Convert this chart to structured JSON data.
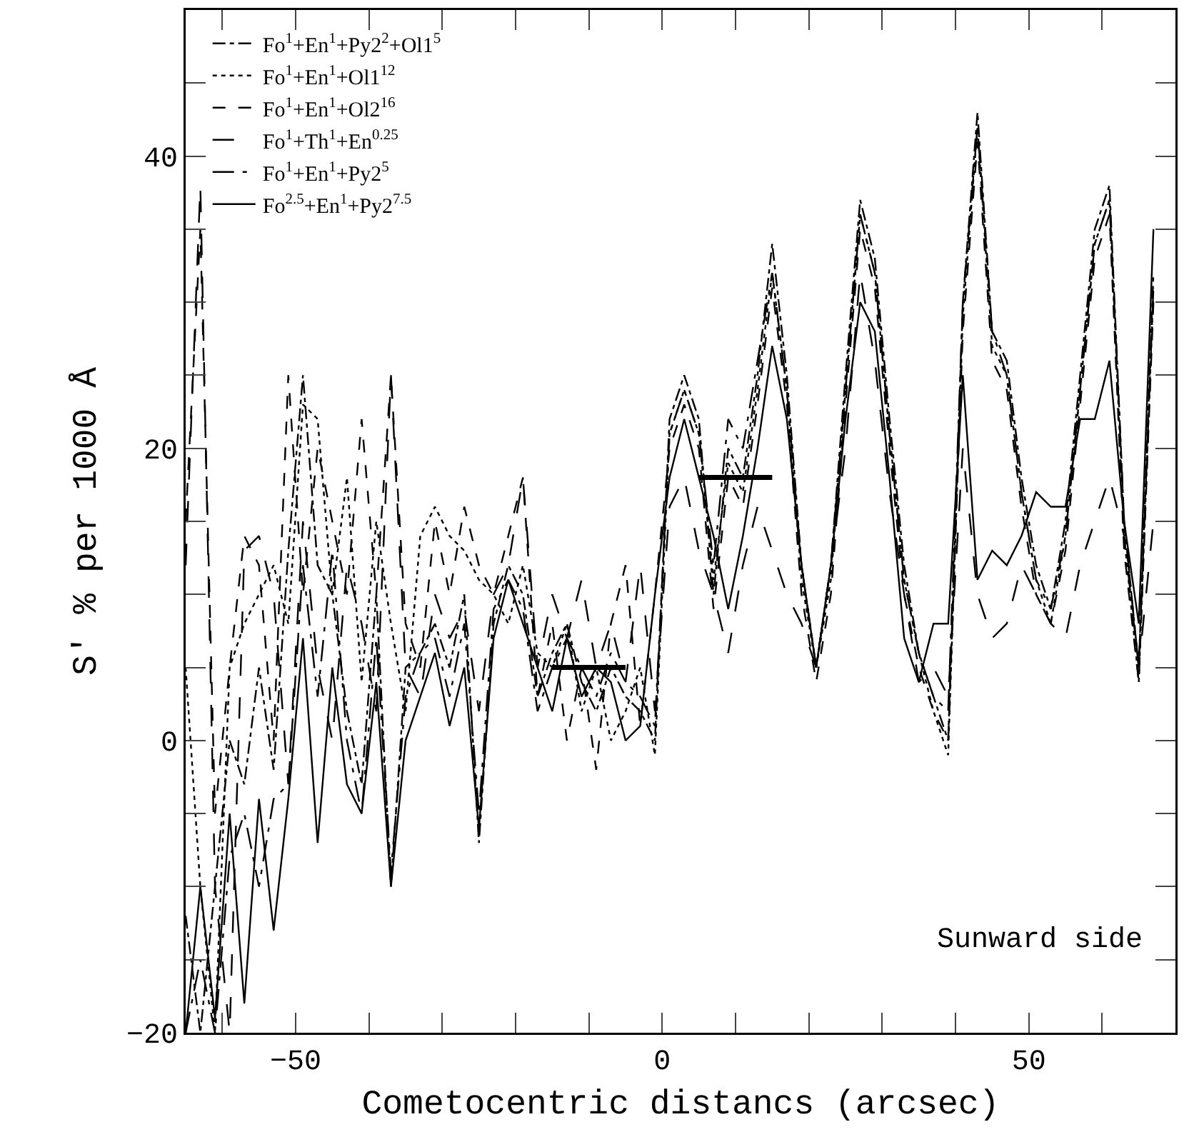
{
  "chart_data": {
    "type": "line",
    "xlabel": "Cometocentric distancs (arcsec)",
    "ylabel": "S' % per 1000 Å",
    "annotations": [
      "Sunward side"
    ],
    "x": [
      -65,
      -63,
      -61,
      -59,
      -57,
      -55,
      -53,
      -51,
      -49,
      -47,
      -45,
      -43,
      -41,
      -39,
      -37,
      -35,
      -33,
      -31,
      -29,
      -27,
      -25,
      -23,
      -21,
      -19,
      -17,
      -15,
      -13,
      -11,
      -9,
      -7,
      -5,
      -3,
      -1,
      1,
      3,
      5,
      7,
      9,
      11,
      13,
      15,
      17,
      19,
      21,
      23,
      25,
      27,
      29,
      31,
      33,
      35,
      37,
      39,
      41,
      43,
      45,
      47,
      49,
      51,
      53,
      55,
      57,
      59,
      61,
      63,
      65,
      67
    ],
    "xlim": [
      -65,
      70
    ],
    "ylim": [
      -20,
      50
    ],
    "xticks": [
      {
        "value": -60,
        "label": null
      },
      -50,
      {
        "value": -40,
        "label": null
      },
      {
        "value": -30,
        "label": null
      },
      {
        "value": -20,
        "label": null
      },
      {
        "value": -10,
        "label": null
      },
      0,
      {
        "value": 10,
        "label": null
      },
      {
        "value": 20,
        "label": null
      },
      {
        "value": 30,
        "label": null
      },
      {
        "value": 40,
        "label": null
      },
      50,
      {
        "value": 60,
        "label": null
      }
    ],
    "yticks": [
      -20,
      {
        "value": -15,
        "label": null
      },
      {
        "value": -10,
        "label": null
      },
      {
        "value": -5,
        "label": null
      },
      0,
      {
        "value": 5,
        "label": null
      },
      {
        "value": 10,
        "label": null
      },
      {
        "value": 15,
        "label": null
      },
      20,
      {
        "value": 25,
        "label": null
      },
      {
        "value": 30,
        "label": null
      },
      {
        "value": 35,
        "label": null
      },
      40,
      {
        "value": 45,
        "label": null
      }
    ],
    "grid": false,
    "legend": "top left",
    "series": [
      {
        "name": "Fo$^{1}$+En$^{1}$+Py2$^{2}$+Ol1$^{5}$",
        "color": "#000000",
        "line_style": "dashdot",
        "values": [
          -12,
          -20,
          -10,
          0,
          -3,
          5,
          -2,
          13,
          25,
          12,
          10,
          2,
          -3,
          10,
          -10,
          5,
          6,
          8,
          5,
          10,
          -7,
          8,
          12,
          10,
          3,
          6,
          8,
          4,
          2,
          5,
          3,
          2,
          0,
          22,
          25,
          22,
          10,
          20,
          18,
          25,
          34,
          25,
          12,
          5,
          12,
          25,
          37,
          33,
          22,
          12,
          6,
          3,
          0,
          30,
          43,
          28,
          26,
          18,
          12,
          9,
          15,
          25,
          35,
          38,
          15,
          5,
          32
        ]
      },
      {
        "name": "Fo$^{1}$+En$^{1}$+Ol1$^{12}$",
        "color": "#000000",
        "line_style": "dotted",
        "values": [
          5,
          -10,
          -20,
          5,
          8,
          10,
          12,
          8,
          23,
          22,
          10,
          18,
          4,
          15,
          8,
          2,
          14,
          16,
          14,
          13,
          11,
          10,
          8,
          12,
          6,
          5,
          8,
          2,
          5,
          0,
          2,
          5,
          -1,
          21,
          24,
          21,
          11,
          19,
          17,
          24,
          32,
          24,
          11,
          5,
          11,
          24,
          36,
          32,
          21,
          11,
          6,
          2,
          -1,
          29,
          42,
          27,
          25,
          17,
          11,
          8,
          14,
          24,
          34,
          37,
          14,
          4,
          31
        ]
      },
      {
        "name": "Fo$^{1}$+En$^{1}$+Ol2$^{16}$",
        "color": "#000000",
        "line_style": "dashed",
        "values": [
          15,
          35,
          -5,
          5,
          14,
          12,
          0,
          25,
          10,
          20,
          15,
          10,
          22,
          10,
          25,
          8,
          5,
          15,
          10,
          16,
          12,
          10,
          14,
          18,
          3,
          8,
          0,
          5,
          -2,
          8,
          12,
          1,
          10,
          20,
          23,
          20,
          9,
          18,
          16,
          23,
          31,
          23,
          10,
          4,
          10,
          23,
          35,
          31,
          20,
          10,
          5,
          2,
          0,
          28,
          41,
          26,
          24,
          16,
          10,
          8,
          13,
          23,
          33,
          36,
          13,
          4,
          30
        ]
      },
      {
        "name": "Fo$^{1}$+Th$^{1}$+En$^{0.25}$",
        "color": "#000000",
        "line_style": "longdash",
        "values": [
          12,
          38,
          -10,
          -20,
          13,
          14,
          10,
          -3,
          15,
          5,
          0,
          12,
          8,
          2,
          25,
          5,
          3,
          10,
          7,
          9,
          2,
          10,
          12,
          18,
          5,
          10,
          7,
          11,
          5,
          8,
          4,
          12,
          2,
          16,
          18,
          13,
          10,
          6,
          12,
          16,
          13,
          10,
          8,
          5,
          12,
          20,
          32,
          26,
          17,
          10,
          4,
          5,
          3,
          20,
          10,
          7,
          8,
          12,
          10,
          8,
          7,
          12,
          15,
          18,
          14,
          5,
          15
        ]
      },
      {
        "name": "Fo$^{1}$+En$^{1}$+Py2$^{5}$",
        "color": "#000000",
        "line_style": "longdashdot",
        "values": [
          -20,
          -15,
          -20,
          -8,
          -5,
          -10,
          -4,
          -3,
          12,
          3,
          13,
          0,
          -5,
          7,
          -9,
          3,
          6,
          7,
          3,
          8,
          -5,
          9,
          11,
          9,
          2,
          5,
          7,
          5,
          3,
          6,
          4,
          3,
          1,
          21,
          24,
          21,
          12,
          22,
          20,
          26,
          32,
          24,
          12,
          5,
          12,
          24,
          36,
          32,
          21,
          11,
          6,
          3,
          2,
          30,
          42,
          28,
          25,
          17,
          11,
          9,
          14,
          24,
          34,
          37,
          15,
          5,
          31
        ]
      },
      {
        "name": "Fo$^{2.5}$+En$^{1}$+Py2$^{7.5}$",
        "color": "#000000",
        "line_style": "solid",
        "values": [
          -20,
          -10,
          -19,
          -5,
          -18,
          -4,
          -13,
          -4,
          7,
          -7,
          5,
          -3,
          -5,
          4,
          -10,
          0,
          3,
          6,
          1,
          5,
          -6,
          7,
          11,
          8,
          5,
          2,
          7,
          3,
          5,
          4,
          0,
          1,
          10,
          18,
          22,
          18,
          14,
          9,
          14,
          20,
          27,
          22,
          12,
          5,
          12,
          22,
          30,
          28,
          18,
          7,
          4,
          8,
          8,
          25,
          11,
          13,
          12,
          14,
          17,
          16,
          16,
          22,
          22,
          26,
          15,
          8,
          35
        ]
      },
      {
        "x": [
          -15,
          -5
        ],
        "color": "#000000",
        "line_style": "solid",
        "values": [
          5,
          5
        ]
      },
      {
        "x": [
          5,
          15
        ],
        "color": "#000000",
        "line_style": "solid",
        "values": [
          18,
          18
        ]
      }
    ]
  }
}
